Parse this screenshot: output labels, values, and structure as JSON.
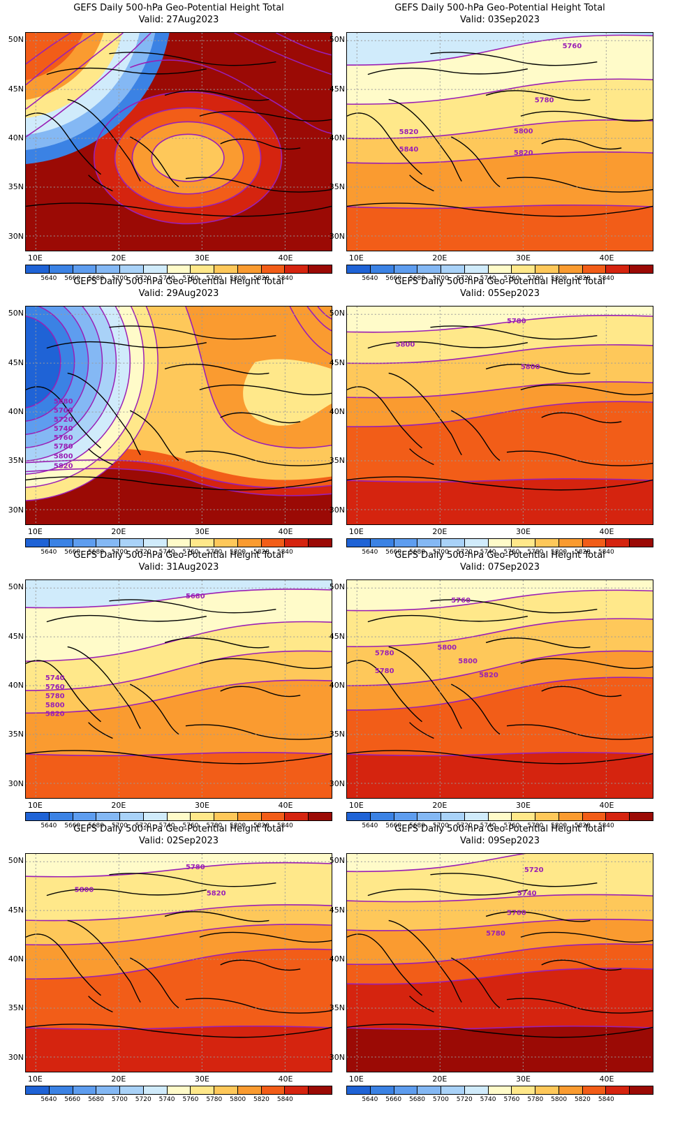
{
  "title": "GEFS Daily 500-hPa Geo-Potential Height Total",
  "lat_labels": [
    "50N",
    "45N",
    "40N",
    "35N",
    "30N"
  ],
  "lon_labels": [
    "10E",
    "20E",
    "30E",
    "40E"
  ],
  "colorbar": {
    "labels": [
      "5640",
      "5660",
      "5680",
      "5700",
      "5720",
      "5740",
      "5760",
      "5780",
      "5800",
      "5820",
      "5840"
    ],
    "colors": [
      "#1f63d6",
      "#3b82e4",
      "#5e9def",
      "#84b8f4",
      "#a9d2f8",
      "#d0ebfb",
      "#fffbc9",
      "#ffe88a",
      "#fec85a",
      "#fa9b30",
      "#f25d18",
      "#d5240f",
      "#9b0a05"
    ]
  },
  "contour_color": "#9a1fb5",
  "panels": [
    {
      "valid": "Valid: 27Aug2023",
      "contour_labels": []
    },
    {
      "valid": "Valid: 03Sep2023",
      "contour_labels": [
        "5760",
        "5780",
        "5800",
        "5820",
        "5820",
        "5840"
      ]
    },
    {
      "valid": "Valid: 29Aug2023",
      "contour_labels": [
        "5680",
        "5700",
        "5720",
        "5740",
        "5760",
        "5780",
        "5800",
        "5820"
      ]
    },
    {
      "valid": "Valid: 05Sep2023",
      "contour_labels": [
        "5780",
        "5800",
        "5800"
      ]
    },
    {
      "valid": "Valid: 31Aug2023",
      "contour_labels": [
        "5680",
        "5740",
        "5760",
        "5780",
        "5800",
        "5820"
      ]
    },
    {
      "valid": "Valid: 07Sep2023",
      "contour_labels": [
        "5760",
        "5780",
        "5780",
        "5800",
        "5800",
        "5820"
      ]
    },
    {
      "valid": "Valid: 02Sep2023",
      "contour_labels": [
        "5780",
        "5800",
        "5820"
      ]
    },
    {
      "valid": "Valid: 09Sep2023",
      "contour_labels": [
        "5720",
        "5740",
        "5760",
        "5780"
      ]
    }
  ]
}
